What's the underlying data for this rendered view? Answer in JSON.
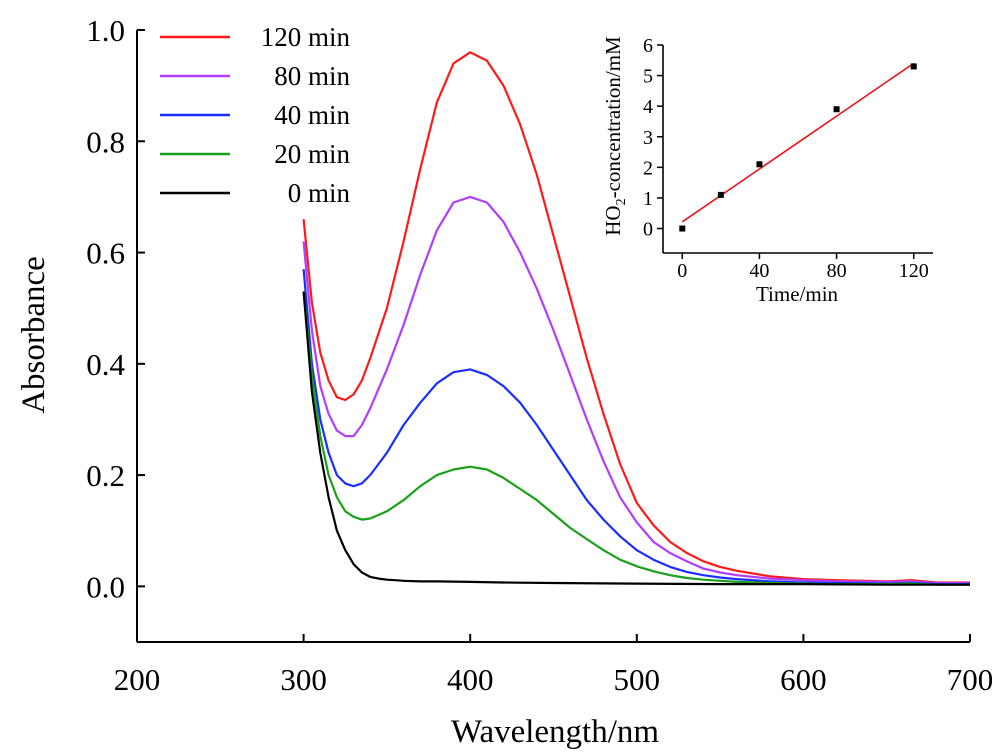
{
  "chart_data": [
    {
      "type": "line",
      "xlabel": "Wavelength/nm",
      "ylabel": "Absorbance",
      "xlim": [
        200,
        700
      ],
      "ylim": [
        -0.1,
        1.0
      ],
      "xticks": [
        "200",
        "300",
        "400",
        "500",
        "600",
        "700"
      ],
      "yticks": [
        "0.0",
        "0.2",
        "0.4",
        "0.6",
        "0.8",
        "1.0"
      ],
      "grid": false,
      "legend_position": "top-left",
      "series": [
        {
          "name": "120 min",
          "color": "#ff1a1a",
          "x": [
            300,
            305,
            310,
            315,
            320,
            325,
            330,
            335,
            340,
            350,
            360,
            370,
            380,
            390,
            400,
            410,
            420,
            430,
            440,
            450,
            460,
            470,
            480,
            490,
            500,
            510,
            520,
            530,
            540,
            550,
            560,
            580,
            600,
            620,
            650,
            665,
            680,
            700
          ],
          "y": [
            0.66,
            0.51,
            0.42,
            0.37,
            0.34,
            0.335,
            0.345,
            0.37,
            0.41,
            0.5,
            0.62,
            0.75,
            0.87,
            0.94,
            0.96,
            0.945,
            0.9,
            0.83,
            0.74,
            0.63,
            0.52,
            0.41,
            0.31,
            0.22,
            0.15,
            0.11,
            0.08,
            0.06,
            0.045,
            0.035,
            0.028,
            0.018,
            0.013,
            0.011,
            0.009,
            0.011,
            0.007,
            0.007
          ]
        },
        {
          "name": "80 min",
          "color": "#b23cff",
          "x": [
            300,
            305,
            310,
            315,
            320,
            325,
            330,
            335,
            340,
            350,
            360,
            370,
            380,
            390,
            400,
            410,
            420,
            430,
            440,
            450,
            460,
            470,
            480,
            490,
            500,
            510,
            520,
            530,
            540,
            550,
            560,
            580,
            600,
            620,
            650,
            665,
            680,
            700
          ],
          "y": [
            0.62,
            0.46,
            0.36,
            0.31,
            0.28,
            0.27,
            0.27,
            0.29,
            0.32,
            0.39,
            0.47,
            0.56,
            0.64,
            0.69,
            0.7,
            0.69,
            0.655,
            0.6,
            0.535,
            0.46,
            0.38,
            0.3,
            0.225,
            0.16,
            0.115,
            0.08,
            0.06,
            0.045,
            0.032,
            0.025,
            0.02,
            0.014,
            0.011,
            0.009,
            0.008,
            0.009,
            0.006,
            0.006
          ]
        },
        {
          "name": "40 min",
          "color": "#1a2eff",
          "x": [
            300,
            305,
            310,
            315,
            320,
            325,
            330,
            335,
            340,
            350,
            360,
            370,
            380,
            390,
            400,
            410,
            420,
            430,
            440,
            450,
            460,
            470,
            480,
            490,
            500,
            510,
            520,
            530,
            540,
            550,
            560,
            580,
            600,
            620,
            650,
            665,
            680,
            700
          ],
          "y": [
            0.57,
            0.4,
            0.3,
            0.24,
            0.2,
            0.185,
            0.18,
            0.185,
            0.2,
            0.24,
            0.29,
            0.33,
            0.365,
            0.385,
            0.39,
            0.38,
            0.36,
            0.33,
            0.29,
            0.245,
            0.2,
            0.155,
            0.12,
            0.09,
            0.065,
            0.048,
            0.035,
            0.026,
            0.02,
            0.016,
            0.013,
            0.009,
            0.007,
            0.006,
            0.005,
            0.006,
            0.004,
            0.004
          ]
        },
        {
          "name": "20 min",
          "color": "#1aa01a",
          "x": [
            300,
            305,
            310,
            315,
            320,
            325,
            330,
            335,
            340,
            350,
            360,
            370,
            380,
            390,
            400,
            410,
            420,
            430,
            440,
            450,
            460,
            470,
            480,
            490,
            500,
            510,
            520,
            530,
            540,
            550,
            560,
            580,
            600,
            620,
            650,
            665,
            680,
            700
          ],
          "y": [
            0.53,
            0.38,
            0.27,
            0.2,
            0.16,
            0.135,
            0.125,
            0.12,
            0.122,
            0.135,
            0.155,
            0.18,
            0.2,
            0.21,
            0.215,
            0.21,
            0.195,
            0.175,
            0.155,
            0.13,
            0.105,
            0.085,
            0.065,
            0.048,
            0.036,
            0.027,
            0.02,
            0.015,
            0.012,
            0.01,
            0.008,
            0.006,
            0.005,
            0.004,
            0.004,
            0.005,
            0.003,
            0.003
          ]
        },
        {
          "name": "0 min",
          "color": "#000000",
          "x": [
            300,
            305,
            310,
            315,
            320,
            325,
            330,
            335,
            340,
            345,
            350,
            355,
            360,
            370,
            380,
            400,
            420,
            450,
            500,
            550,
            600,
            650,
            700
          ],
          "y": [
            0.53,
            0.35,
            0.24,
            0.16,
            0.1,
            0.065,
            0.04,
            0.025,
            0.017,
            0.014,
            0.012,
            0.011,
            0.01,
            0.009,
            0.009,
            0.008,
            0.007,
            0.006,
            0.005,
            0.004,
            0.004,
            0.003,
            0.003
          ]
        }
      ]
    },
    {
      "type": "scatter",
      "xlabel": "Time/min",
      "ylabel_parts": [
        "HO",
        "2",
        "-concentration/mM"
      ],
      "xlim": [
        -10,
        130
      ],
      "ylim": [
        -0.8,
        6
      ],
      "xticks": [
        "0",
        "40",
        "80",
        "120"
      ],
      "yticks": [
        "0",
        "1",
        "2",
        "3",
        "4",
        "5",
        "6"
      ],
      "grid": false,
      "points": {
        "color": "#000000",
        "x": [
          0,
          20,
          40,
          80,
          120
        ],
        "y": [
          0.0,
          1.1,
          2.1,
          3.9,
          5.3
        ]
      },
      "fit_line": {
        "color": "#e8141a",
        "x": [
          0,
          120
        ],
        "y": [
          0.22,
          5.4
        ]
      }
    }
  ]
}
